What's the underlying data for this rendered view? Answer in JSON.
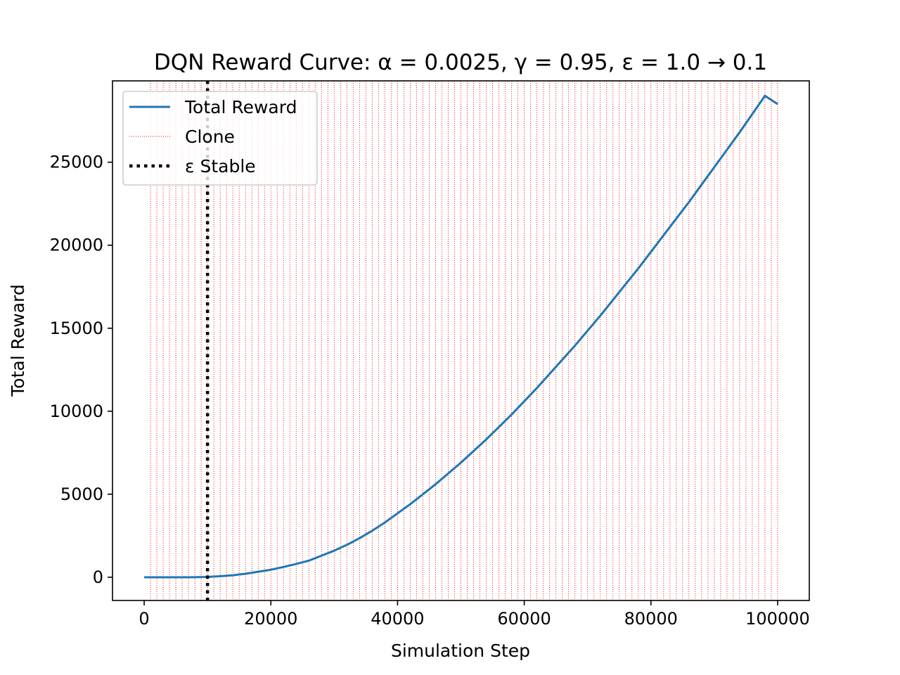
{
  "chart_data": {
    "type": "line",
    "title": "DQN Reward Curve: α = 0.0025, γ = 0.95, ε = 1.0 → 0.1",
    "xlabel": "Simulation Step",
    "ylabel": "Total Reward",
    "xlim": [
      -5000,
      105000
    ],
    "ylim": [
      -1400,
      29900
    ],
    "x_ticks": [
      0,
      20000,
      40000,
      60000,
      80000,
      100000
    ],
    "y_ticks": [
      0,
      5000,
      10000,
      15000,
      20000,
      25000
    ],
    "grid": false,
    "legend_position": "top-left",
    "series": [
      {
        "name": "Total Reward",
        "color": "#1f77b4",
        "x": [
          0,
          2000,
          4000,
          6000,
          8000,
          10000,
          12000,
          14000,
          16000,
          18000,
          20000,
          22000,
          24000,
          26000,
          28000,
          30000,
          32000,
          34000,
          36000,
          38000,
          40000,
          42000,
          44000,
          46000,
          48000,
          50000,
          52000,
          54000,
          56000,
          58000,
          60000,
          62000,
          64000,
          66000,
          68000,
          70000,
          72000,
          74000,
          76000,
          78000,
          80000,
          82000,
          84000,
          86000,
          88000,
          90000,
          92000,
          94000,
          96000,
          98000,
          100000
        ],
        "y": [
          0,
          0,
          0,
          0,
          5,
          20,
          60,
          120,
          210,
          330,
          450,
          620,
          800,
          1000,
          1300,
          1600,
          1950,
          2350,
          2800,
          3300,
          3850,
          4400,
          5000,
          5600,
          6250,
          6900,
          7600,
          8300,
          9050,
          9800,
          10600,
          11400,
          12250,
          13100,
          13950,
          14850,
          15750,
          16700,
          17650,
          18600,
          19600,
          20600,
          21600,
          22600,
          23650,
          24700,
          25750,
          26800,
          27900,
          29000,
          28500
        ]
      }
    ],
    "clone_lines": {
      "name": "Clone",
      "color": "#ff0000",
      "start": 1000,
      "end": 100000,
      "step": 1000
    },
    "epsilon_stable": {
      "name": "ε Stable",
      "color": "#000000",
      "x": 10000
    }
  }
}
